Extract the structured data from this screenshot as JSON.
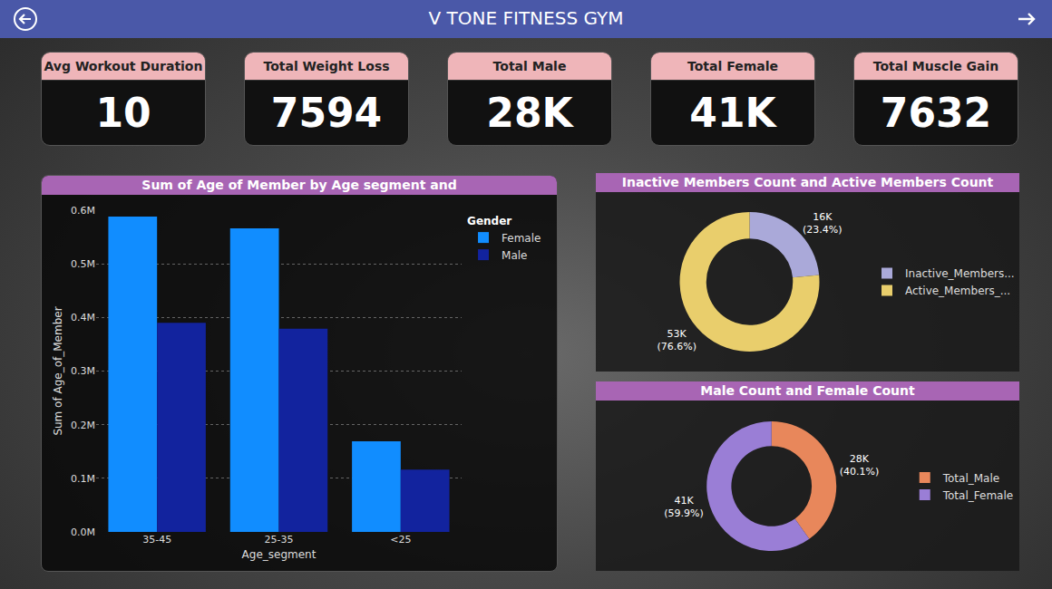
{
  "header": {
    "title": "V TONE FITNESS GYM"
  },
  "cards": [
    {
      "label": "Avg Workout Duration",
      "value": 10
    },
    {
      "label": "Total Weight Loss",
      "value": 7594
    },
    {
      "label": "Total Male",
      "value": "28K"
    },
    {
      "label": "Total Female",
      "value": "41K"
    },
    {
      "label": "Total Muscle Gain",
      "value": 7632
    }
  ],
  "chart_data": [
    {
      "type": "bar",
      "title": "Sum of Age of Member by Age segment and",
      "x_label": "Age_segment",
      "y_label": "Sum of Age_of_Member",
      "categories": [
        "35-45",
        "25-35",
        "<25"
      ],
      "legend_title": "Gender",
      "series": [
        {
          "name": "Female",
          "color": "#118dff",
          "values": [
            588000,
            566000,
            169000
          ]
        },
        {
          "name": "Male",
          "color": "#12239e",
          "values": [
            390000,
            379000,
            116000
          ]
        }
      ],
      "ylim": [
        0,
        600000
      ],
      "yticks": [
        {
          "value": 0,
          "label": "0.0M"
        },
        {
          "value": 100000,
          "label": "0.1M"
        },
        {
          "value": 200000,
          "label": "0.2M"
        },
        {
          "value": 300000,
          "label": "0.3M"
        },
        {
          "value": 400000,
          "label": "0.4M"
        },
        {
          "value": 500000,
          "label": "0.5M"
        },
        {
          "value": 600000,
          "label": "0.6M"
        }
      ],
      "grid": true,
      "legend": "top right"
    },
    {
      "type": "pie",
      "title": "Inactive Members Count and Active Members Count",
      "categories": [
        "Inactive_Members...",
        "Active_Members_..."
      ],
      "values": [
        16200,
        52900
      ],
      "value_labels": [
        "16K\n(23.4%)",
        "53K\n(76.6%)"
      ],
      "colors": [
        "#aaa9d9",
        "#e9ce6c"
      ],
      "data_labels": true,
      "legend": "right"
    },
    {
      "type": "pie",
      "title": "Male Count and Female Count",
      "categories": [
        "Total_Male",
        "Total_Female"
      ],
      "values": [
        27600,
        41200
      ],
      "value_labels": [
        "28K\n(40.1%)",
        "41K\n(59.9%)"
      ],
      "colors": [
        "#e8875b",
        "#9a7ed6"
      ],
      "data_labels": true,
      "legend": "right"
    }
  ]
}
